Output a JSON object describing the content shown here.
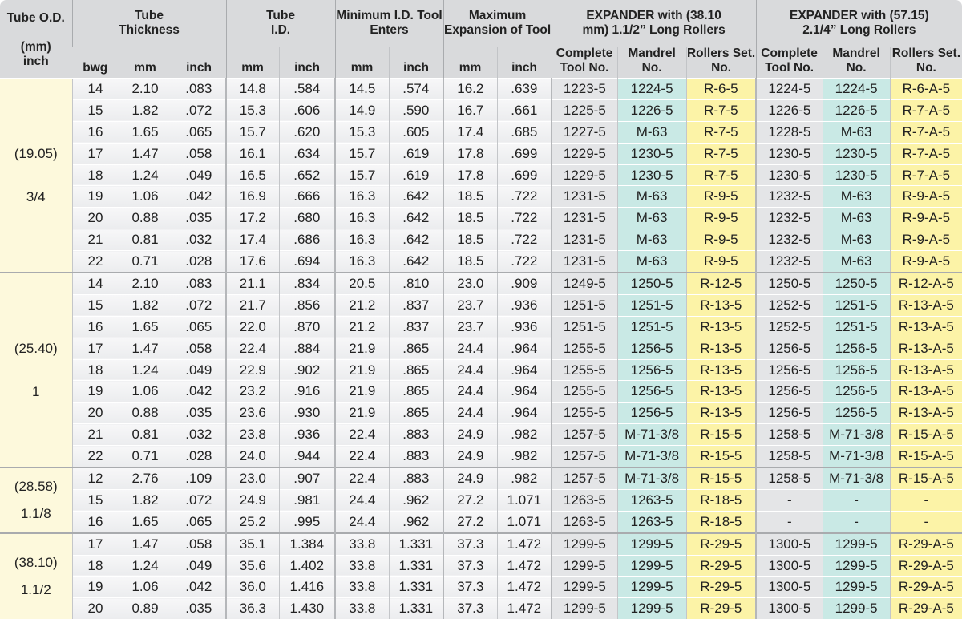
{
  "header": {
    "od": {
      "line1": "Tube O.D.",
      "line2": "(mm)",
      "line3": "inch"
    },
    "thickness": "Tube Thickness",
    "id": "Tube I.D.",
    "min_id": "Minimum I.D. Tool Enters",
    "max_exp": "Maximum Expansion of Tool",
    "exp1": "EXPANDER with (38.10 mm) 1.1/2” Long Rollers",
    "exp2": "EXPANDER with (57.15) 2.1/4” Long Rollers",
    "sub": [
      "bwg",
      "mm",
      "inch",
      "mm",
      "inch",
      "mm",
      "inch",
      "mm",
      "inch",
      "Complete Tool No.",
      "Mandrel No.",
      "Rollers Set. No.",
      "Complete Tool No.",
      "Mandrel No.",
      "Rollers Set. No."
    ]
  },
  "groups": [
    {
      "mm": "(19.05)",
      "inch": "3/4",
      "rows": [
        [
          "14",
          "2.10",
          ".083",
          "14.8",
          ".584",
          "14.5",
          ".574",
          "16.2",
          ".639",
          "1223-5",
          "1224-5",
          "R-6-5",
          "1224-5",
          "1224-5",
          "R-6-A-5"
        ],
        [
          "15",
          "1.82",
          ".072",
          "15.3",
          ".606",
          "14.9",
          ".590",
          "16.7",
          ".661",
          "1225-5",
          "1226-5",
          "R-7-5",
          "1226-5",
          "1226-5",
          "R-7-A-5"
        ],
        [
          "16",
          "1.65",
          ".065",
          "15.7",
          ".620",
          "15.3",
          ".605",
          "17.4",
          ".685",
          "1227-5",
          "M-63",
          "R-7-5",
          "1228-5",
          "M-63",
          "R-7-A-5"
        ],
        [
          "17",
          "1.47",
          ".058",
          "16.1",
          ".634",
          "15.7",
          ".619",
          "17.8",
          ".699",
          "1229-5",
          "1230-5",
          "R-7-5",
          "1230-5",
          "1230-5",
          "R-7-A-5"
        ],
        [
          "18",
          "1.24",
          ".049",
          "16.5",
          ".652",
          "15.7",
          ".619",
          "17.8",
          ".699",
          "1229-5",
          "1230-5",
          "R-7-5",
          "1230-5",
          "1230-5",
          "R-7-A-5"
        ],
        [
          "19",
          "1.06",
          ".042",
          "16.9",
          ".666",
          "16.3",
          ".642",
          "18.5",
          ".722",
          "1231-5",
          "M-63",
          "R-9-5",
          "1232-5",
          "M-63",
          "R-9-A-5"
        ],
        [
          "20",
          "0.88",
          ".035",
          "17.2",
          ".680",
          "16.3",
          ".642",
          "18.5",
          ".722",
          "1231-5",
          "M-63",
          "R-9-5",
          "1232-5",
          "M-63",
          "R-9-A-5"
        ],
        [
          "21",
          "0.81",
          ".032",
          "17.4",
          ".686",
          "16.3",
          ".642",
          "18.5",
          ".722",
          "1231-5",
          "M-63",
          "R-9-5",
          "1232-5",
          "M-63",
          "R-9-A-5"
        ],
        [
          "22",
          "0.71",
          ".028",
          "17.6",
          ".694",
          "16.3",
          ".642",
          "18.5",
          ".722",
          "1231-5",
          "M-63",
          "R-9-5",
          "1232-5",
          "M-63",
          "R-9-A-5"
        ]
      ]
    },
    {
      "mm": "(25.40)",
      "inch": "1",
      "rows": [
        [
          "14",
          "2.10",
          ".083",
          "21.1",
          ".834",
          "20.5",
          ".810",
          "23.0",
          ".909",
          "1249-5",
          "1250-5",
          "R-12-5",
          "1250-5",
          "1250-5",
          "R-12-A-5"
        ],
        [
          "15",
          "1.82",
          ".072",
          "21.7",
          ".856",
          "21.2",
          ".837",
          "23.7",
          ".936",
          "1251-5",
          "1251-5",
          "R-13-5",
          "1252-5",
          "1251-5",
          "R-13-A-5"
        ],
        [
          "16",
          "1.65",
          ".065",
          "22.0",
          ".870",
          "21.2",
          ".837",
          "23.7",
          ".936",
          "1251-5",
          "1251-5",
          "R-13-5",
          "1252-5",
          "1251-5",
          "R-13-A-5"
        ],
        [
          "17",
          "1.47",
          ".058",
          "22.4",
          ".884",
          "21.9",
          ".865",
          "24.4",
          ".964",
          "1255-5",
          "1256-5",
          "R-13-5",
          "1256-5",
          "1256-5",
          "R-13-A-5"
        ],
        [
          "18",
          "1.24",
          ".049",
          "22.9",
          ".902",
          "21.9",
          ".865",
          "24.4",
          ".964",
          "1255-5",
          "1256-5",
          "R-13-5",
          "1256-5",
          "1256-5",
          "R-13-A-5"
        ],
        [
          "19",
          "1.06",
          ".042",
          "23.2",
          ".916",
          "21.9",
          ".865",
          "24.4",
          ".964",
          "1255-5",
          "1256-5",
          "R-13-5",
          "1256-5",
          "1256-5",
          "R-13-A-5"
        ],
        [
          "20",
          "0.88",
          ".035",
          "23.6",
          ".930",
          "21.9",
          ".865",
          "24.4",
          ".964",
          "1255-5",
          "1256-5",
          "R-13-5",
          "1256-5",
          "1256-5",
          "R-13-A-5"
        ],
        [
          "21",
          "0.81",
          ".032",
          "23.8",
          ".936",
          "22.4",
          ".883",
          "24.9",
          ".982",
          "1257-5",
          "M-71-3/8",
          "R-15-5",
          "1258-5",
          "M-71-3/8",
          "R-15-A-5"
        ],
        [
          "22",
          "0.71",
          ".028",
          "24.0",
          ".944",
          "22.4",
          ".883",
          "24.9",
          ".982",
          "1257-5",
          "M-71-3/8",
          "R-15-5",
          "1258-5",
          "M-71-3/8",
          "R-15-A-5"
        ]
      ]
    },
    {
      "mm": "(28.58)",
      "inch": "1.1/8",
      "rows": [
        [
          "12",
          "2.76",
          ".109",
          "23.0",
          ".907",
          "22.4",
          ".883",
          "24.9",
          ".982",
          "1257-5",
          "M-71-3/8",
          "R-15-5",
          "1258-5",
          "M-71-3/8",
          "R-15-A-5"
        ],
        [
          "15",
          "1.82",
          ".072",
          "24.9",
          ".981",
          "24.4",
          ".962",
          "27.2",
          "1.071",
          "1263-5",
          "1263-5",
          "R-18-5",
          "-",
          "-",
          "-"
        ],
        [
          "16",
          "1.65",
          ".065",
          "25.2",
          ".995",
          "24.4",
          ".962",
          "27.2",
          "1.071",
          "1263-5",
          "1263-5",
          "R-18-5",
          "-",
          "-",
          "-"
        ]
      ]
    },
    {
      "mm": "(38.10)",
      "inch": "1.1/2",
      "rows": [
        [
          "17",
          "1.47",
          ".058",
          "35.1",
          "1.384",
          "33.8",
          "1.331",
          "37.3",
          "1.472",
          "1299-5",
          "1299-5",
          "R-29-5",
          "1300-5",
          "1299-5",
          "R-29-A-5"
        ],
        [
          "18",
          "1.24",
          ".049",
          "35.6",
          "1.402",
          "33.8",
          "1.331",
          "37.3",
          "1.472",
          "1299-5",
          "1299-5",
          "R-29-5",
          "1300-5",
          "1299-5",
          "R-29-A-5"
        ],
        [
          "19",
          "1.06",
          ".042",
          "36.0",
          "1.416",
          "33.8",
          "1.331",
          "37.3",
          "1.472",
          "1299-5",
          "1299-5",
          "R-29-5",
          "1300-5",
          "1299-5",
          "R-29-A-5"
        ],
        [
          "20",
          "0.89",
          ".035",
          "36.3",
          "1.430",
          "33.8",
          "1.331",
          "37.3",
          "1.472",
          "1299-5",
          "1299-5",
          "R-29-5",
          "1300-5",
          "1299-5",
          "R-29-A-5"
        ]
      ]
    }
  ]
}
